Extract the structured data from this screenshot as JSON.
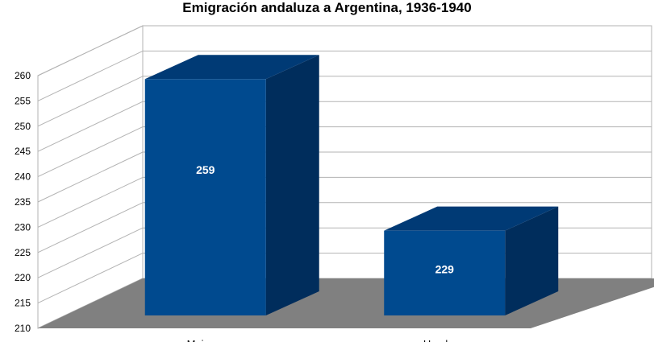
{
  "chart_data": {
    "type": "bar",
    "title": "Emigración andaluza a Argentina, 1936-1940",
    "categories": [
      "Mujeres",
      "Hombres"
    ],
    "values": [
      259,
      229
    ],
    "xlabel": "",
    "ylabel": "",
    "ylim": [
      210,
      260
    ],
    "yticks": [
      210,
      215,
      220,
      225,
      230,
      235,
      240,
      245,
      250,
      255,
      260
    ],
    "grid": true,
    "legend": "none",
    "style": "3d-box",
    "colors": {
      "bar_front": "#004a8f",
      "bar_top": "#003a75",
      "bar_side": "#002d5c",
      "floor": "#808080",
      "grid": "#b3b3b3"
    }
  }
}
